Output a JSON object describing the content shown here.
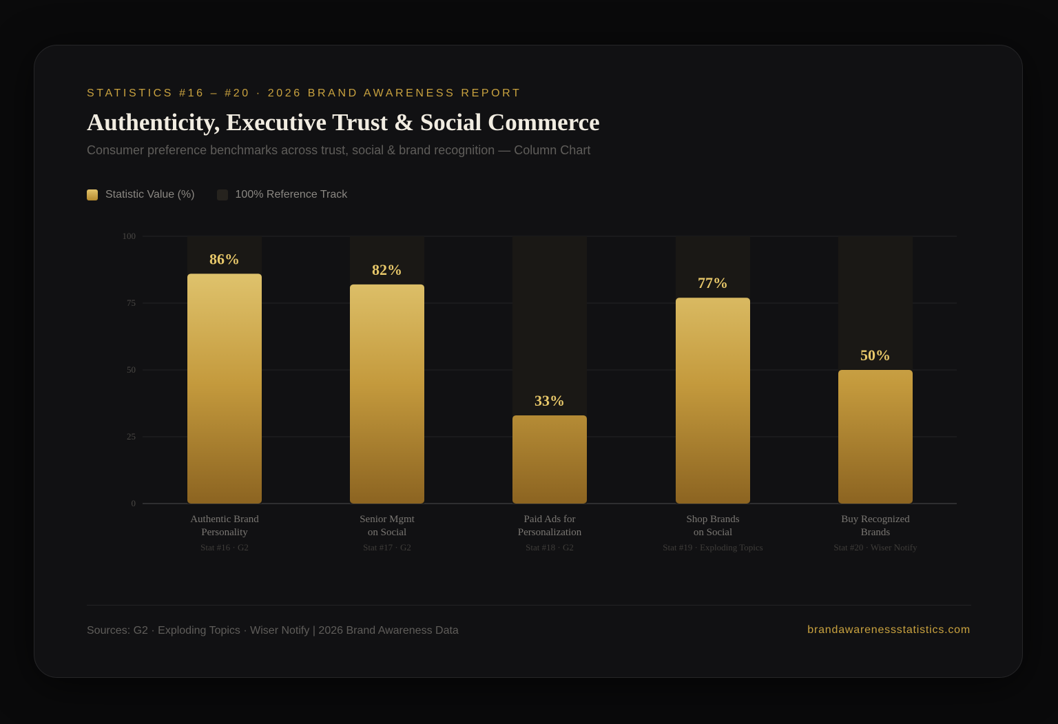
{
  "header": {
    "eyebrow": "STATISTICS #16 – #20  ·  2026 BRAND AWARENESS REPORT",
    "title": "Authenticity, Executive Trust & Social Commerce",
    "subtitle": "Consumer preference benchmarks across trust, social & brand recognition — Column Chart"
  },
  "legend": {
    "value_label": "Statistic Value (%)",
    "track_label": "100% Reference Track",
    "placement": "top-left"
  },
  "colors": {
    "accent": "#c9a23f",
    "bar_top": "#e8d07c",
    "bar_bottom": "#8c6421",
    "track": "#1a1815",
    "grid": "#242426",
    "value_label": "#e8c86a"
  },
  "chart_data": {
    "type": "bar",
    "title": "Authenticity, Executive Trust & Social Commerce",
    "categories": [
      [
        "Authentic Brand",
        "Personality"
      ],
      [
        "Senior Mgmt",
        "on Social"
      ],
      [
        "Paid Ads for",
        "Personalization"
      ],
      [
        "Shop Brands",
        "on Social"
      ],
      [
        "Buy Recognized",
        "Brands"
      ]
    ],
    "sources": [
      "Stat #16 · G2",
      "Stat #17 · G2",
      "Stat #18 · G2",
      "Stat #19 · Exploding Topics",
      "Stat #20 · Wiser Notify"
    ],
    "series": [
      {
        "name": "Statistic Value (%)",
        "values": [
          86,
          82,
          33,
          77,
          50
        ],
        "labels": [
          "86%",
          "82%",
          "33%",
          "77%",
          "50%"
        ]
      }
    ],
    "reference": 100,
    "ylim": [
      0,
      100
    ],
    "yticks": [
      0,
      25,
      50,
      75,
      100
    ],
    "grid": true,
    "xlabel": "",
    "ylabel": ""
  },
  "footer": {
    "sources": "Sources: G2 · Exploding Topics · Wiser Notify  |  2026 Brand Awareness Data",
    "site": "brandawarenessstatistics.com"
  }
}
